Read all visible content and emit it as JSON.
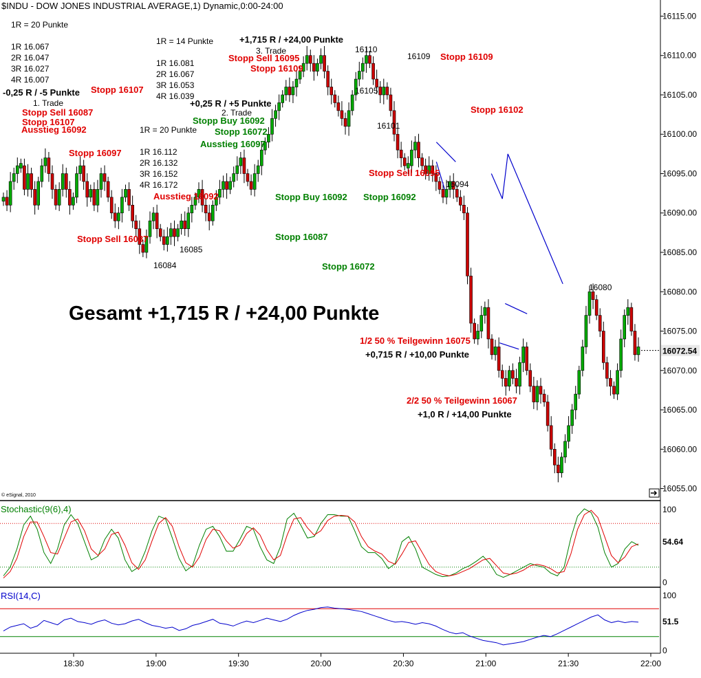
{
  "header": {
    "title": "$INDU - DOW JONES INDUSTRIAL AVERAGE,1) Dynamic,0:00-24:00",
    "copyright": "© eSignal, 2010"
  },
  "chart_data": [
    {
      "type": "candlestick",
      "title": "$INDU - DOW JONES INDUSTRIAL AVERAGE,1) Dynamic,0:00-24:00",
      "price_axis": {
        "ylim": [
          16054,
          16116
        ],
        "ticks": [
          16115,
          16110,
          16105,
          16100,
          16095,
          16090,
          16085,
          16080,
          16075,
          16070,
          16065,
          16060,
          16055
        ],
        "tick_labels": [
          "16115.00",
          "16110.00",
          "16105.00",
          "16100.00",
          "16095.00",
          "16090.00",
          "16085.00",
          "16080.00",
          "16075.00",
          "16070.00",
          "16065.00",
          "16060.00",
          "16055.00"
        ],
        "last_price": 16072.54,
        "last_price_label": "16072.54"
      },
      "time_axis": {
        "ticks": [
          "18:30",
          "19:00",
          "19:30",
          "20:00",
          "20:30",
          "21:00",
          "21:30",
          "22:00"
        ],
        "range": [
          "18:10",
          "22:00"
        ]
      },
      "closes": [
        16092,
        16091,
        16094,
        16095,
        16096,
        16096,
        16093,
        16095,
        16093,
        16091,
        16094,
        16096,
        16097,
        16095,
        16093,
        16091,
        16093,
        16095,
        16093,
        16091,
        16092,
        16095,
        16096,
        16094,
        16092,
        16093,
        16091,
        16093,
        16095,
        16094,
        16092,
        16090,
        16089,
        16090,
        16092,
        16093,
        16091,
        16089,
        16088,
        16086,
        16085,
        16087,
        16089,
        16090,
        16088,
        16087,
        16086,
        16087,
        16088,
        16087,
        16088,
        16089,
        16088,
        16090,
        16091,
        16092,
        16093,
        16091,
        16090,
        16089,
        16091,
        16092,
        16093,
        16094,
        16093,
        16094,
        16095,
        16096,
        16097,
        16095,
        16094,
        16093,
        16095,
        16096,
        16098,
        16099,
        16100,
        16102,
        16103,
        16104,
        16105,
        16106,
        16105,
        16106,
        16107,
        16108,
        16109,
        16110,
        16109,
        16108,
        16109,
        16110,
        16108,
        16106,
        16105,
        16104,
        16103,
        16102,
        16101,
        16103,
        16105,
        16107,
        16108,
        16109,
        16110,
        16109,
        16107,
        16106,
        16105,
        16106,
        16105,
        16103,
        16100,
        16098,
        16097,
        16096,
        16096,
        16098,
        16099,
        16097,
        16096,
        16095,
        16096,
        16095,
        16094,
        16093,
        16092,
        16093,
        16094,
        16093,
        16092,
        16091,
        16090,
        16082,
        16076,
        16074,
        16075,
        16077,
        16078,
        16074,
        16072,
        16073,
        16070,
        16069,
        16068,
        16070,
        16069,
        16068,
        16071,
        16073,
        16070,
        16068,
        16066,
        16068,
        16067,
        16066,
        16063,
        16060,
        16058,
        16057,
        16059,
        16061,
        16063,
        16065,
        16067,
        16070,
        16073,
        16077,
        16080,
        16079,
        16077,
        16075,
        16071,
        16069,
        16068,
        16067,
        16070,
        16074,
        16077,
        16078,
        16075,
        16072,
        16073
      ],
      "price_labels": [
        "16110",
        "16109",
        "16105",
        "16101",
        "16094",
        "16080",
        "16085",
        "16084"
      ],
      "trendlines": [
        {
          "from": [
            "20:42",
            16099
          ],
          "to": [
            "20:49",
            16096.5
          ]
        },
        {
          "from": [
            "20:42",
            16096.5
          ],
          "to": [
            "20:45",
            16093
          ]
        },
        {
          "from": [
            "21:02",
            16095
          ],
          "to": [
            "21:06",
            16091.8
          ]
        },
        {
          "from": [
            "21:06",
            16091.8
          ],
          "to": [
            "21:08",
            16097.5
          ]
        },
        {
          "from": [
            "21:08",
            16097.5
          ],
          "to": [
            "21:28",
            16081
          ]
        },
        {
          "from": [
            "21:07",
            16078.5
          ],
          "to": [
            "21:15",
            16077.2
          ]
        },
        {
          "from": [
            "21:05",
            16073.5
          ],
          "to": [
            "21:12",
            16072.7
          ]
        }
      ]
    },
    {
      "type": "line",
      "title": "Stochastic(9(6),4)",
      "ylim": [
        0,
        100
      ],
      "tick_labels": [
        "100",
        "0"
      ],
      "levels": [
        80,
        20
      ],
      "last_value": 54.64,
      "last_value_label": "54.64",
      "series": [
        {
          "name": "%K",
          "color": "#008000",
          "values": [
            8,
            20,
            45,
            78,
            90,
            72,
            40,
            25,
            45,
            78,
            92,
            80,
            55,
            30,
            35,
            58,
            72,
            60,
            30,
            14,
            20,
            42,
            70,
            90,
            86,
            60,
            32,
            15,
            22,
            50,
            72,
            76,
            62,
            42,
            42,
            58,
            76,
            72,
            48,
            30,
            25,
            48,
            86,
            94,
            78,
            60,
            62,
            80,
            92,
            92,
            90,
            90,
            70,
            48,
            40,
            40,
            32,
            18,
            25,
            55,
            62,
            45,
            20,
            15,
            10,
            7,
            8,
            12,
            18,
            22,
            28,
            35,
            25,
            10,
            6,
            10,
            15,
            20,
            25,
            22,
            20,
            12,
            8,
            20,
            60,
            90,
            100,
            95,
            75,
            40,
            20,
            25,
            45,
            55,
            50
          ]
        },
        {
          "name": "%D",
          "color": "#e00000",
          "values": [
            5,
            14,
            32,
            62,
            82,
            82,
            62,
            40,
            38,
            60,
            82,
            86,
            70,
            45,
            36,
            45,
            65,
            68,
            50,
            26,
            17,
            30,
            56,
            80,
            88,
            76,
            48,
            26,
            20,
            34,
            58,
            72,
            70,
            56,
            46,
            50,
            66,
            74,
            64,
            44,
            30,
            36,
            64,
            86,
            88,
            74,
            64,
            70,
            84,
            90,
            91,
            90,
            82,
            62,
            48,
            42,
            38,
            28,
            24,
            38,
            54,
            56,
            40,
            24,
            14,
            10,
            8,
            10,
            14,
            18,
            24,
            30,
            32,
            22,
            12,
            10,
            12,
            16,
            22,
            24,
            22,
            18,
            12,
            14,
            38,
            72,
            92,
            98,
            88,
            62,
            36,
            26,
            34,
            48,
            52
          ]
        }
      ]
    },
    {
      "type": "line",
      "title": "RSI(14,C)",
      "ylim": [
        0,
        100
      ],
      "tick_labels": [
        "100",
        "0"
      ],
      "levels": [
        75,
        25
      ],
      "last_value": 51.5,
      "last_value_label": "51.5",
      "series": [
        {
          "name": "RSI",
          "color": "#0000cc",
          "values": [
            35,
            42,
            45,
            48,
            40,
            44,
            54,
            50,
            46,
            55,
            58,
            52,
            50,
            47,
            52,
            55,
            49,
            46,
            48,
            53,
            56,
            50,
            45,
            43,
            40,
            42,
            36,
            39,
            45,
            48,
            52,
            56,
            49,
            47,
            44,
            49,
            53,
            50,
            54,
            58,
            55,
            52,
            56,
            63,
            68,
            72,
            74,
            77,
            78,
            76,
            75,
            74,
            72,
            70,
            66,
            62,
            58,
            54,
            51,
            52,
            50,
            47,
            50,
            48,
            44,
            38,
            33,
            30,
            32,
            26,
            22,
            18,
            16,
            14,
            10,
            12,
            14,
            16,
            20,
            24,
            27,
            25,
            30,
            36,
            42,
            48,
            54,
            60,
            64,
            55,
            50,
            53,
            50,
            52,
            51
          ]
        }
      ]
    }
  ],
  "annotations": {
    "red": [
      "Stopp Sell 16095",
      "Stopp 16109",
      "Stopp 16109",
      "Stopp 16107",
      "Stopp 16102",
      "Stopp Sell 16087",
      "Stopp 16107",
      "Ausstieg 16092",
      "Stopp 16097",
      "Ausstieg 16092",
      "Stopp Sell 16087",
      "Stopp Sell 16095",
      "1/2 50 % Teilgewinn 16075",
      "2/2 50 % Teilgewinn 16067"
    ],
    "green": [
      "Stopp Buy 16092",
      "Stopp 16072",
      "Ausstieg 16097",
      "Stopp Buy 16092",
      "Stopp 16092",
      "Stopp 16087",
      "Stopp 16072"
    ],
    "black": [
      "1R = 20 Punkte",
      "1R 16.067",
      "2R 16.047",
      "3R 16.027",
      "4R 16.007",
      "-0,25 R / -5 Punkte",
      "1. Trade",
      "1R = 14 Punkte",
      "1R 16.081",
      "2R 16.067",
      "3R 16.053",
      "4R 16.039",
      "+0,25 R / +5 Punkte",
      "2. Trade",
      "1R = 20 Punkte",
      "1R 16.112",
      "2R 16.132",
      "3R 16.152",
      "4R 16.172",
      "+1,715 R /  +24,00 Punkte",
      "3. Trade",
      "+0,715 R /  +10,00 Punkte",
      "+1,0 R /  +14,00 Punkte"
    ],
    "summary": "Gesamt +1,715 R /  +24,00 Punkte"
  }
}
